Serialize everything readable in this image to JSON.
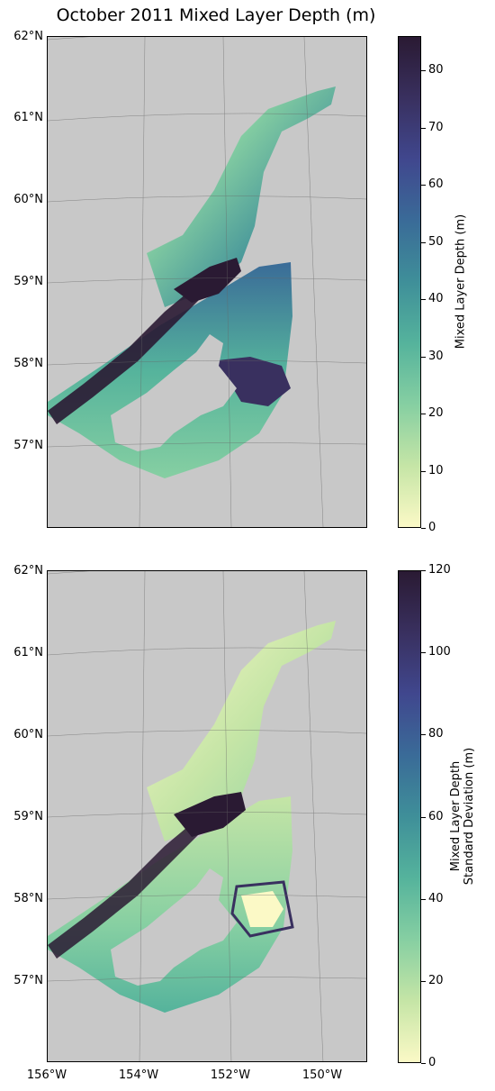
{
  "title": "October 2011 Mixed Layer Depth (m)",
  "colors": {
    "land": "#c8c8c8",
    "cmap": [
      "#fbf9c6",
      "#c5e5a6",
      "#86cfa2",
      "#55b39c",
      "#3f8f99",
      "#3a6b98",
      "#40478e",
      "#39305f",
      "#2a1a33"
    ]
  },
  "lat_labels": [
    "62°N",
    "61°N",
    "60°N",
    "59°N",
    "58°N",
    "57°N"
  ],
  "lon_labels": [
    "156°W",
    "154°W",
    "152°W",
    "150°W"
  ],
  "panels": [
    {
      "colorbar_label": "Mixed Layer Depth (m)",
      "colorbar_label_line2": "",
      "vmin": 0,
      "vmax": 86,
      "ticks": [
        "0",
        "10",
        "20",
        "30",
        "40",
        "50",
        "60",
        "70",
        "80"
      ]
    },
    {
      "colorbar_label": "Mixed Layer Depth",
      "colorbar_label_line2": "Standard Deviation (m)",
      "vmin": 0,
      "vmax": 120,
      "ticks": [
        "0",
        "20",
        "40",
        "60",
        "80",
        "100",
        "120"
      ]
    }
  ]
}
